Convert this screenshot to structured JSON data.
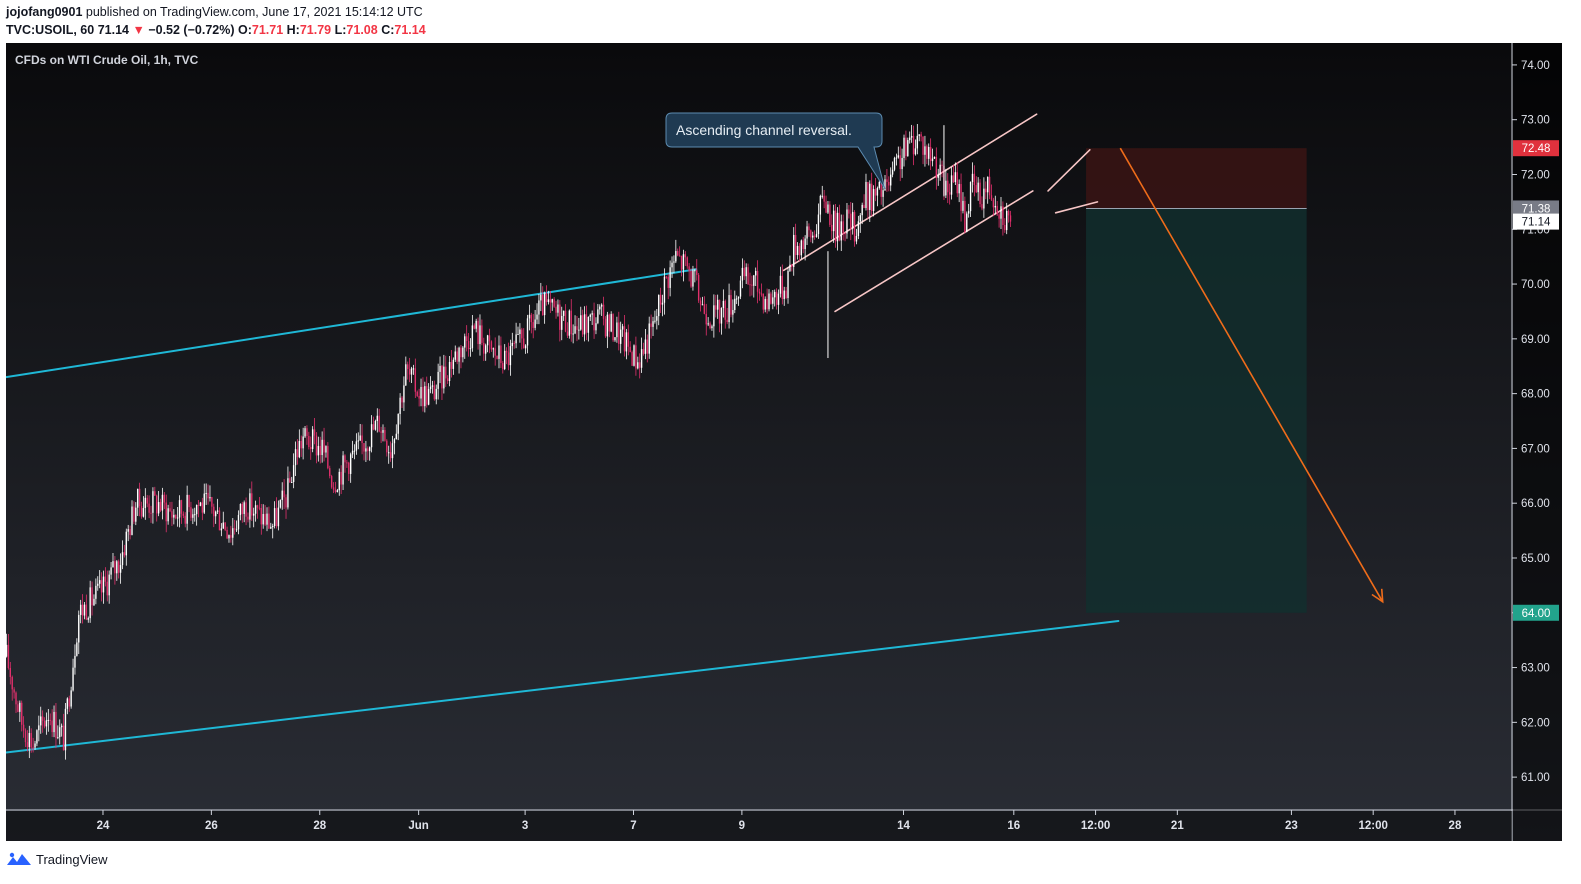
{
  "header": {
    "author": "jojofang0901",
    "published_text": "published on TradingView.com, June 17, 2021 15:14:12 UTC",
    "symbol": "TVC:USOIL, 60",
    "last": "71.14",
    "change": "−0.52 (−0.72%)",
    "open_label": "O:",
    "open": "71.71",
    "high_label": "H:",
    "high": "71.79",
    "low_label": "L:",
    "low": "71.08",
    "close_label": "C:",
    "close": "71.14"
  },
  "chart_title": "CFDs on WTI Crude Oil, 1h, TVC",
  "annotation": "Ascending channel reversal.",
  "footer": {
    "brand": "TradingView"
  },
  "colors": {
    "background_top": "#0a0a0c",
    "background_bottom": "#2a2d35",
    "candle_up": "#ffffff",
    "candle_down": "#e2306c",
    "channel_long": "#1fb8d6",
    "channel_short": "#f7c6c6",
    "arrow": "#ef6c1a",
    "stop_zone": "#3a1414",
    "target_zone": "#12302e",
    "stop_badge": "#e0313d",
    "target_badge": "#22a38c"
  },
  "chart_data": {
    "type": "candlestick",
    "title": "CFDs on WTI Crude Oil, 1h, TVC",
    "y_axis": {
      "ticks": [
        61,
        62,
        63,
        64,
        65,
        66,
        67,
        68,
        69,
        70,
        71,
        72,
        73,
        74
      ],
      "ylim": [
        60.4,
        74.4
      ]
    },
    "x_axis": {
      "ticks": [
        "24",
        "26",
        "28",
        "Jun",
        "3",
        "7",
        "9",
        "14",
        "16",
        "12:00",
        "21",
        "23",
        "12:00",
        "28"
      ]
    },
    "price_path": [
      [
        0,
        63.2
      ],
      [
        8,
        62.0
      ],
      [
        14,
        61.6
      ],
      [
        22,
        62.2
      ],
      [
        30,
        61.7
      ],
      [
        38,
        64.0
      ],
      [
        50,
        64.4
      ],
      [
        60,
        65.0
      ],
      [
        68,
        66.0
      ],
      [
        80,
        66.0
      ],
      [
        88,
        65.8
      ],
      [
        100,
        66.0
      ],
      [
        108,
        65.9
      ],
      [
        118,
        65.5
      ],
      [
        126,
        66.0
      ],
      [
        132,
        65.8
      ],
      [
        140,
        65.6
      ],
      [
        148,
        66.2
      ],
      [
        152,
        66.9
      ],
      [
        156,
        67.2
      ],
      [
        166,
        67.0
      ],
      [
        172,
        66.4
      ],
      [
        180,
        66.8
      ],
      [
        186,
        67.0
      ],
      [
        196,
        67.5
      ],
      [
        202,
        67.0
      ],
      [
        210,
        68.4
      ],
      [
        218,
        68.0
      ],
      [
        224,
        68.0
      ],
      [
        234,
        68.6
      ],
      [
        246,
        69.2
      ],
      [
        254,
        68.8
      ],
      [
        262,
        68.6
      ],
      [
        272,
        69.0
      ],
      [
        282,
        69.6
      ],
      [
        292,
        69.4
      ],
      [
        300,
        69.2
      ],
      [
        312,
        69.4
      ],
      [
        322,
        69.1
      ],
      [
        332,
        68.6
      ],
      [
        340,
        69.2
      ],
      [
        346,
        70.0
      ],
      [
        352,
        70.5
      ],
      [
        358,
        70.3
      ],
      [
        362,
        70.0
      ],
      [
        366,
        69.6
      ],
      [
        372,
        69.4
      ],
      [
        380,
        69.6
      ],
      [
        388,
        70.1
      ],
      [
        394,
        70.0
      ],
      [
        400,
        69.7
      ],
      [
        410,
        70.0
      ],
      [
        414,
        70.7
      ],
      [
        424,
        70.9
      ],
      [
        430,
        71.6
      ],
      [
        436,
        71.0
      ],
      [
        442,
        71.2
      ],
      [
        446,
        71.0
      ],
      [
        452,
        71.6
      ],
      [
        458,
        71.6
      ],
      [
        464,
        71.8
      ],
      [
        470,
        72.3
      ],
      [
        476,
        72.6
      ],
      [
        480,
        72.7
      ],
      [
        484,
        72.4
      ],
      [
        488,
        72.3
      ],
      [
        494,
        71.7
      ],
      [
        500,
        71.9
      ],
      [
        504,
        71.2
      ],
      [
        508,
        71.8
      ],
      [
        512,
        71.6
      ],
      [
        516,
        71.8
      ],
      [
        520,
        71.6
      ],
      [
        524,
        71.3
      ],
      [
        528,
        71.14
      ]
    ],
    "series": [
      {
        "name": "Ascending channel (upper)",
        "points": [
          [
            0,
            68.3
          ],
          [
            363,
            70.27
          ]
        ]
      },
      {
        "name": "Ascending channel (lower)",
        "points": [
          [
            0,
            61.45
          ],
          [
            585,
            63.85
          ]
        ]
      },
      {
        "name": "Short-term channel (upper)",
        "points": [
          [
            409,
            70.25
          ],
          [
            542,
            73.1
          ]
        ]
      },
      {
        "name": "Short-term channel (lower)",
        "points": [
          [
            436,
            69.5
          ],
          [
            540,
            71.7
          ]
        ]
      },
      {
        "name": "Flag (upper)",
        "points": [
          [
            548,
            71.7
          ],
          [
            570,
            72.45
          ]
        ]
      },
      {
        "name": "Flag (lower)",
        "points": [
          [
            552,
            71.3
          ],
          [
            574,
            71.5
          ]
        ]
      }
    ],
    "spikes": [
      {
        "x": 432,
        "high": 70.6,
        "low": 68.65
      },
      {
        "x": 493,
        "high": 72.9,
        "low": 71.6
      }
    ],
    "position": {
      "type": "short",
      "entry": 71.38,
      "stop": 72.48,
      "target": 64.0,
      "current": 71.14,
      "labels": {
        "entry": "71.38",
        "stop": "72.48",
        "target": "64.00",
        "current": "71.14"
      }
    },
    "projection_arrow": {
      "from": [
        586,
        72.48
      ],
      "to": [
        724,
        64.2
      ]
    },
    "x_tick_positions": [
      51,
      108,
      165,
      217,
      273,
      330,
      387,
      472,
      530,
      573,
      616,
      676,
      719,
      762
    ],
    "grid": false,
    "legend": "none"
  }
}
